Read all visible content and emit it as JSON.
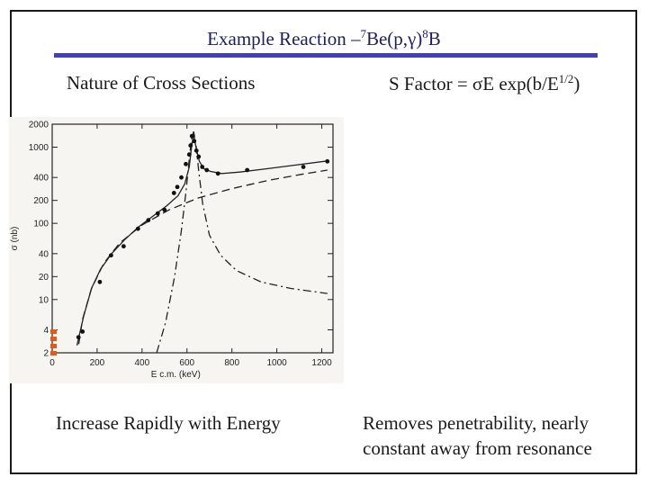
{
  "slide": {
    "title_prefix": "Example Reaction –",
    "title_sup1": "7",
    "title_mid": "Be(p,γ)",
    "title_sup2": "8",
    "title_suffix": "B"
  },
  "left": {
    "heading": "Nature of Cross Sections",
    "caption": "Increase Rapidly with Energy"
  },
  "right": {
    "heading_prefix": "S Factor = σE exp(b/E",
    "heading_sup": "1/2",
    "heading_suffix": ")",
    "caption_line1": "Removes penetrability, nearly",
    "caption_line2": "constant away from resonance"
  },
  "colors": {
    "title": "#1e1e5a",
    "rule": "#3f3fbf",
    "marker": "#e05a1c"
  },
  "chart_data": {
    "type": "scatter",
    "xlabel": "E c.m. (keV)",
    "ylabel": "σ (nb)",
    "log_y": true,
    "xlim": [
      0,
      1250
    ],
    "ylim": [
      2,
      2000
    ],
    "x_ticks": [
      0,
      200,
      400,
      600,
      800,
      1000,
      1200
    ],
    "x_tick_labels": [
      "0",
      "200",
      "400",
      "600",
      "800",
      "1000",
      "1200"
    ],
    "y_ticks": [
      2,
      4,
      10,
      20,
      40,
      100,
      200,
      400,
      1000,
      2000
    ],
    "y_tick_labels": [
      "2",
      "4",
      "10",
      "20",
      "40",
      "100",
      "200",
      "400",
      "1000",
      "2000"
    ],
    "points": {
      "x": [
        117,
        135,
        212,
        262,
        318,
        382,
        428,
        470,
        500,
        542,
        557,
        575,
        595,
        610,
        616,
        622,
        632,
        642,
        652,
        668,
        688,
        738,
        868,
        1118,
        1225
      ],
      "y": [
        3.2,
        3.8,
        17,
        38,
        50,
        85,
        110,
        135,
        150,
        250,
        300,
        400,
        600,
        800,
        1050,
        1400,
        1200,
        900,
        750,
        550,
        500,
        450,
        500,
        550,
        650
      ]
    },
    "series": [
      {
        "style": "solid",
        "x": [
          110,
          140,
          175,
          215,
          265,
          320,
          385,
          450,
          510,
          560,
          590,
          610,
          620,
          630,
          640,
          655,
          675,
          705,
          755,
          835,
          955,
          1080,
          1225
        ],
        "y": [
          2.5,
          6,
          14,
          25,
          40,
          60,
          90,
          125,
          170,
          230,
          330,
          550,
          1000,
          1500,
          1000,
          650,
          520,
          480,
          450,
          470,
          520,
          580,
          660
        ]
      },
      {
        "style": "dashed",
        "x": [
          118,
          135,
          175,
          230,
          300,
          400,
          520,
          650,
          800,
          960,
          1110,
          1225
        ],
        "y": [
          2.6,
          5.5,
          14,
          30,
          55,
          95,
          150,
          215,
          285,
          365,
          440,
          500
        ]
      },
      {
        "style": "dash-dot",
        "x": [
          465,
          505,
          545,
          575,
          595,
          610,
          620,
          630,
          640,
          652,
          670,
          700,
          750,
          820,
          930,
          1060,
          1225
        ],
        "y": [
          2,
          5,
          20,
          80,
          250,
          700,
          1300,
          1600,
          1100,
          500,
          180,
          70,
          38,
          24,
          17,
          14,
          12
        ]
      }
    ]
  }
}
